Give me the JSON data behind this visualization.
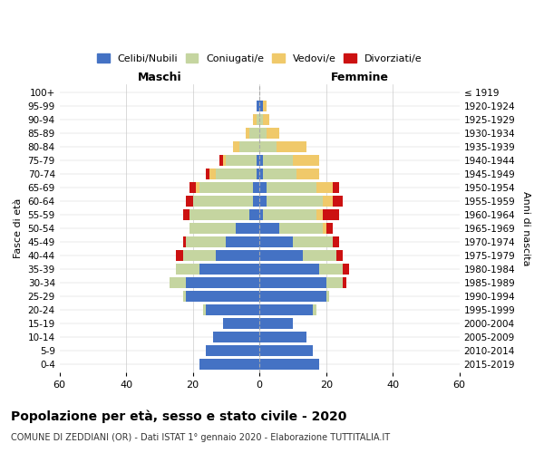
{
  "age_groups": [
    "0-4",
    "5-9",
    "10-14",
    "15-19",
    "20-24",
    "25-29",
    "30-34",
    "35-39",
    "40-44",
    "45-49",
    "50-54",
    "55-59",
    "60-64",
    "65-69",
    "70-74",
    "75-79",
    "80-84",
    "85-89",
    "90-94",
    "95-99",
    "100+"
  ],
  "birth_years": [
    "2015-2019",
    "2010-2014",
    "2005-2009",
    "2000-2004",
    "1995-1999",
    "1990-1994",
    "1985-1989",
    "1980-1984",
    "1975-1979",
    "1970-1974",
    "1965-1969",
    "1960-1964",
    "1955-1959",
    "1950-1954",
    "1945-1949",
    "1940-1944",
    "1935-1939",
    "1930-1934",
    "1925-1929",
    "1920-1924",
    "≤ 1919"
  ],
  "male_celibi": [
    18,
    16,
    14,
    11,
    16,
    22,
    22,
    18,
    13,
    10,
    7,
    3,
    2,
    2,
    1,
    1,
    0,
    0,
    0,
    1,
    0
  ],
  "male_coniugati": [
    0,
    0,
    0,
    0,
    1,
    1,
    5,
    7,
    10,
    12,
    14,
    18,
    18,
    16,
    12,
    9,
    6,
    3,
    1,
    0,
    0
  ],
  "male_vedovi": [
    0,
    0,
    0,
    0,
    0,
    0,
    0,
    0,
    0,
    0,
    0,
    0,
    0,
    1,
    2,
    1,
    2,
    1,
    1,
    0,
    0
  ],
  "male_divorziati": [
    0,
    0,
    0,
    0,
    0,
    0,
    0,
    0,
    2,
    1,
    0,
    2,
    2,
    2,
    1,
    1,
    0,
    0,
    0,
    0,
    0
  ],
  "female_celibi": [
    18,
    16,
    14,
    10,
    16,
    20,
    20,
    18,
    13,
    10,
    6,
    1,
    2,
    2,
    1,
    1,
    0,
    0,
    0,
    1,
    0
  ],
  "female_coniugati": [
    0,
    0,
    0,
    0,
    1,
    1,
    5,
    7,
    10,
    12,
    13,
    16,
    17,
    15,
    10,
    9,
    5,
    2,
    1,
    0,
    0
  ],
  "female_vedovi": [
    0,
    0,
    0,
    0,
    0,
    0,
    0,
    0,
    0,
    0,
    1,
    2,
    3,
    5,
    7,
    8,
    9,
    4,
    2,
    1,
    0
  ],
  "female_divorziati": [
    0,
    0,
    0,
    0,
    0,
    0,
    1,
    2,
    2,
    2,
    2,
    5,
    3,
    2,
    0,
    0,
    0,
    0,
    0,
    0,
    0
  ],
  "colors": {
    "celibi": "#4472c4",
    "coniugati": "#c5d5a0",
    "vedovi": "#f0c96a",
    "divorziati": "#cc1111"
  },
  "title": "Popolazione per età, sesso e stato civile - 2020",
  "subtitle": "COMUNE DI ZEDDIANI (OR) - Dati ISTAT 1° gennaio 2020 - Elaborazione TUTTITALIA.IT",
  "xlabel_left": "Maschi",
  "xlabel_right": "Femmine",
  "ylabel_left": "Fasce di età",
  "ylabel_right": "Anni di nascita",
  "legend_labels": [
    "Celibi/Nubili",
    "Coniugati/e",
    "Vedovi/e",
    "Divorziati/e"
  ],
  "xlim": 60,
  "background_color": "#ffffff",
  "grid_color": "#cccccc"
}
